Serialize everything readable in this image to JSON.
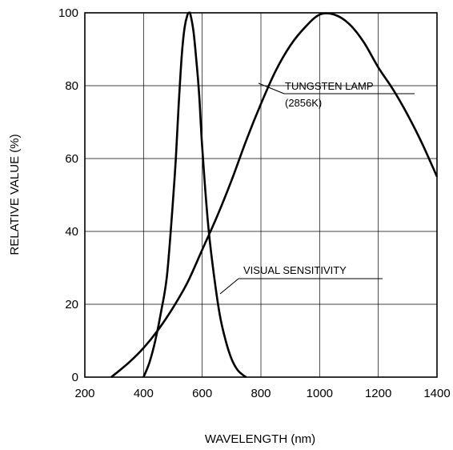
{
  "chart_data": {
    "type": "line",
    "title": "",
    "xlabel": "WAVELENGTH (nm)",
    "ylabel": "RELATIVE VALUE (%)",
    "xlim": [
      200,
      1400
    ],
    "ylim": [
      0,
      100
    ],
    "xticks": [
      "200",
      "400",
      "600",
      "800",
      "1000",
      "1200",
      "1400"
    ],
    "yticks": [
      "0",
      "20",
      "40",
      "60",
      "80",
      "100"
    ],
    "grid": true,
    "series": [
      {
        "name": "TUNGSTEN LAMP",
        "x": [
          290,
          350,
          400,
          450,
          500,
          550,
          600,
          650,
          700,
          750,
          800,
          850,
          900,
          950,
          1000,
          1050,
          1100,
          1150,
          1200,
          1250,
          1300,
          1350,
          1400
        ],
        "y": [
          0,
          4,
          8,
          13,
          19,
          26,
          35,
          44,
          54,
          65,
          75,
          84,
          91,
          96,
          99.5,
          99.5,
          97,
          92,
          85,
          79,
          72,
          64,
          55
        ]
      },
      {
        "name": "VISUAL SENSITIVITY",
        "x": [
          400,
          420,
          440,
          460,
          480,
          500,
          510,
          520,
          530,
          540,
          550,
          555,
          560,
          570,
          580,
          590,
          600,
          620,
          640,
          660,
          680,
          700,
          720,
          740,
          750
        ],
        "y": [
          0,
          4,
          10,
          18,
          28,
          48,
          60,
          75,
          88,
          96,
          99.5,
          100,
          99.5,
          95,
          87,
          77,
          63,
          42,
          28,
          17,
          10,
          5,
          2,
          0.5,
          0
        ]
      }
    ],
    "annotations": [
      {
        "text": "TUNGSTEN LAMP",
        "subtext": "(2856K)",
        "series": "TUNGSTEN LAMP"
      },
      {
        "text": "VISUAL SENSITIVITY",
        "series": "VISUAL SENSITIVITY"
      }
    ]
  }
}
